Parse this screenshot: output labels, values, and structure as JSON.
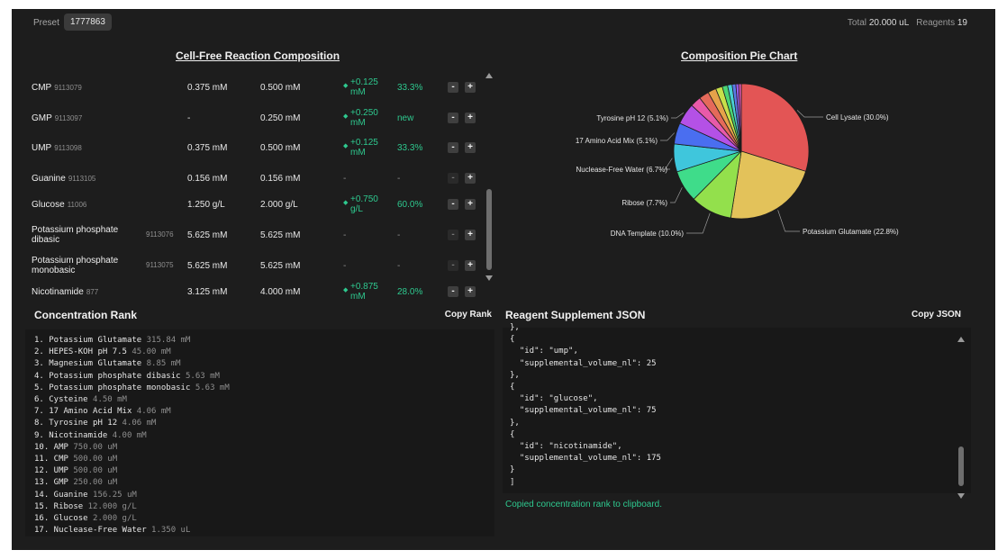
{
  "header": {
    "preset_label": "Preset",
    "preset_value": "1777863",
    "total_label": "Total",
    "total_value": "20.000 uL",
    "reagents_label": "Reagents",
    "reagents_value": "19"
  },
  "composition": {
    "title": "Cell-Free Reaction Composition",
    "rows": [
      {
        "name": "CMP",
        "id": "9113079",
        "current": "0.375 mM",
        "target": "0.500 mM",
        "change": "+0.125 mM",
        "pct": "33.3%",
        "minus": "-",
        "plus": "+"
      },
      {
        "name": "GMP",
        "id": "9113097",
        "current": "-",
        "target": "0.250 mM",
        "change": "+0.250 mM",
        "pct": "new",
        "minus": "-",
        "plus": "+"
      },
      {
        "name": "UMP",
        "id": "9113098",
        "current": "0.375 mM",
        "target": "0.500 mM",
        "change": "+0.125 mM",
        "pct": "33.3%",
        "minus": "-",
        "plus": "+"
      },
      {
        "name": "Guanine",
        "id": "9113105",
        "current": "0.156 mM",
        "target": "0.156 mM",
        "change": "-",
        "pct": "-",
        "minus": "-",
        "plus": "+"
      },
      {
        "name": "Glucose",
        "id": "11006",
        "current": "1.250 g/L",
        "target": "2.000 g/L",
        "change": "+0.750 g/L",
        "pct": "60.0%",
        "minus": "-",
        "plus": "+"
      },
      {
        "name": "Potassium phosphate dibasic",
        "id": "9113076",
        "current": "5.625 mM",
        "target": "5.625 mM",
        "change": "-",
        "pct": "-",
        "minus": "-",
        "plus": "+"
      },
      {
        "name": "Potassium phosphate monobasic",
        "id": "9113075",
        "current": "5.625 mM",
        "target": "5.625 mM",
        "change": "-",
        "pct": "-",
        "minus": "-",
        "plus": "+"
      },
      {
        "name": "Nicotinamide",
        "id": "877",
        "current": "3.125 mM",
        "target": "4.000 mM",
        "change": "+0.875 mM",
        "pct": "28.0%",
        "minus": "-",
        "plus": "+"
      }
    ]
  },
  "pie": {
    "title": "Composition Pie Chart"
  },
  "chart_data": {
    "type": "pie",
    "title": "Composition Pie Chart",
    "slices": [
      {
        "label": "Cell Lysate (30.0%)",
        "value": 30.0,
        "color": "#e35555"
      },
      {
        "label": "Potassium Glutamate (22.8%)",
        "value": 22.8,
        "color": "#e3c25a"
      },
      {
        "label": "DNA Template (10.0%)",
        "value": 10.0,
        "color": "#93e04c"
      },
      {
        "label": "Ribose (7.7%)",
        "value": 7.7,
        "color": "#3fdc8a"
      },
      {
        "label": "Nuclease-Free Water (6.7%)",
        "value": 6.7,
        "color": "#3fc6dc"
      },
      {
        "label": "17 Amino Acid Mix (5.1%)",
        "value": 5.1,
        "color": "#4a6ef0"
      },
      {
        "label": "Tyrosine pH 12 (5.1%)",
        "value": 5.1,
        "color": "#b451e6"
      },
      {
        "label": "",
        "value": 2.6,
        "color": "#e85aa9"
      },
      {
        "label": "",
        "value": 2.4,
        "color": "#e56a5a"
      },
      {
        "label": "",
        "value": 2.0,
        "color": "#e6a24a"
      },
      {
        "label": "",
        "value": 1.6,
        "color": "#c7e04a"
      },
      {
        "label": "",
        "value": 1.3,
        "color": "#4ad474"
      },
      {
        "label": "",
        "value": 1.1,
        "color": "#4ad0d4"
      },
      {
        "label": "",
        "value": 0.9,
        "color": "#5a7ae8"
      },
      {
        "label": "",
        "value": 0.7,
        "color": "#9a5ae8"
      },
      {
        "label": "",
        "value": 0.6,
        "color": "#e85ab8"
      }
    ]
  },
  "rank": {
    "title": "Concentration Rank",
    "copy_label": "Copy Rank",
    "items": [
      {
        "label": "1. Potassium Glutamate",
        "amount": "315.84 mM"
      },
      {
        "label": "2. HEPES-KOH pH 7.5",
        "amount": "45.00 mM"
      },
      {
        "label": "3. Magnesium Glutamate",
        "amount": "8.85 mM"
      },
      {
        "label": "4. Potassium phosphate dibasic",
        "amount": "5.63 mM"
      },
      {
        "label": "5. Potassium phosphate monobasic",
        "amount": "5.63 mM"
      },
      {
        "label": "6. Cysteine",
        "amount": "4.50 mM"
      },
      {
        "label": "7. 17 Amino Acid Mix",
        "amount": "4.06 mM"
      },
      {
        "label": "8. Tyrosine pH 12",
        "amount": "4.06 mM"
      },
      {
        "label": "9. Nicotinamide",
        "amount": "4.00 mM"
      },
      {
        "label": "10. AMP",
        "amount": "750.00 uM"
      },
      {
        "label": "11. CMP",
        "amount": "500.00 uM"
      },
      {
        "label": "12. UMP",
        "amount": "500.00 uM"
      },
      {
        "label": "13. GMP",
        "amount": "250.00 uM"
      },
      {
        "label": "14. Guanine",
        "amount": "156.25 uM"
      },
      {
        "label": "15. Ribose",
        "amount": "12.000 g/L"
      },
      {
        "label": "16. Glucose",
        "amount": "2.000 g/L"
      },
      {
        "label": "17. Nuclease-Free Water",
        "amount": "1.350 uL"
      }
    ]
  },
  "json_panel": {
    "title": "Reagent Supplement JSON",
    "copy_label": "Copy JSON",
    "lines": [
      "},",
      "{",
      "  \"id\": \"ump\",",
      "  \"supplemental_volume_nl\": 25",
      "},",
      "{",
      "  \"id\": \"glucose\",",
      "  \"supplemental_volume_nl\": 75",
      "},",
      "{",
      "  \"id\": \"nicotinamide\",",
      "  \"supplemental_volume_nl\": 175",
      "}",
      "]"
    ],
    "status": "Copied concentration rank to clipboard."
  }
}
